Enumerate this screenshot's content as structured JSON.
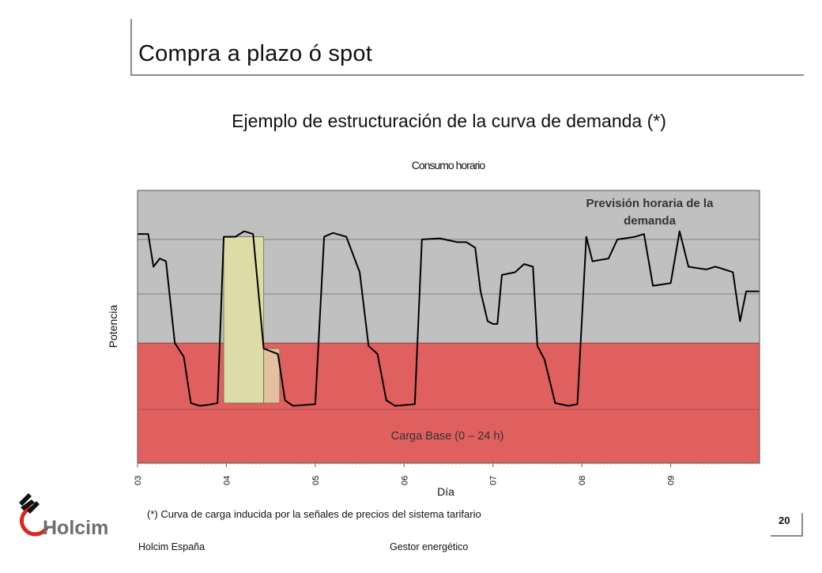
{
  "slide": {
    "title": "Compra a plazo ó spot",
    "subtitle": "Ejemplo de estructuración de la curva de demanda (*)",
    "footnote": "(*) Curva de carga inducida por la señales de precios del sistema tarifario",
    "page_number": "20"
  },
  "footer": {
    "left": "Holcim España",
    "right": "Gestor energético"
  },
  "logo": {
    "text": "Holcim"
  },
  "colors": {
    "plot_bg": "#c0c0c0",
    "base_load": "#e06060",
    "block_yellow": "#dedca6",
    "block_peach": "#e2c0a0",
    "curve": "#000000",
    "logo_red": "#d8281e",
    "logo_gray": "#6e6e6e"
  },
  "chart_data": {
    "type": "line",
    "title": "Consumo horario",
    "xlabel": "Día",
    "ylabel": "Potencia",
    "x_tick_labels": [
      "03",
      "04",
      "05",
      "06",
      "07",
      "08",
      "09"
    ],
    "x_range": [
      0,
      7
    ],
    "y_range": [
      0,
      5
    ],
    "grid": "horizontal",
    "annotations": {
      "forecast": [
        "Previsión horaria de la",
        "demanda"
      ],
      "base_load": "Carga Base (0 – 24 h)"
    },
    "base_load_top": 1.1,
    "blocks": [
      {
        "x": [
          0.97,
          1.42
        ],
        "top": 3.05,
        "fill": "block_yellow"
      },
      {
        "x": [
          1.42,
          1.6
        ],
        "top": 1.0,
        "fill": "block_peach"
      }
    ],
    "series": [
      {
        "points": [
          [
            0.0,
            3.1
          ],
          [
            0.12,
            3.1
          ],
          [
            0.18,
            2.5
          ],
          [
            0.25,
            2.65
          ],
          [
            0.32,
            2.6
          ],
          [
            0.42,
            1.1
          ],
          [
            0.52,
            0.85
          ],
          [
            0.6,
            0.0
          ],
          [
            0.7,
            -0.05
          ],
          [
            0.8,
            -0.03
          ],
          [
            0.9,
            0.0
          ],
          [
            0.97,
            3.05
          ],
          [
            1.1,
            3.05
          ],
          [
            1.2,
            3.15
          ],
          [
            1.3,
            3.1
          ],
          [
            1.42,
            1.0
          ],
          [
            1.58,
            0.9
          ],
          [
            1.66,
            0.05
          ],
          [
            1.75,
            -0.05
          ],
          [
            2.0,
            -0.02
          ],
          [
            2.1,
            3.05
          ],
          [
            2.2,
            3.12
          ],
          [
            2.35,
            3.05
          ],
          [
            2.5,
            2.4
          ],
          [
            2.6,
            1.05
          ],
          [
            2.7,
            0.9
          ],
          [
            2.8,
            0.05
          ],
          [
            2.9,
            -0.05
          ],
          [
            3.05,
            -0.03
          ],
          [
            3.12,
            -0.02
          ],
          [
            3.2,
            3.0
          ],
          [
            3.4,
            3.02
          ],
          [
            3.6,
            2.95
          ],
          [
            3.7,
            2.95
          ],
          [
            3.8,
            2.85
          ],
          [
            3.86,
            2.05
          ],
          [
            3.94,
            1.5
          ],
          [
            4.0,
            1.45
          ],
          [
            4.05,
            1.45
          ],
          [
            4.1,
            2.35
          ],
          [
            4.25,
            2.4
          ],
          [
            4.35,
            2.55
          ],
          [
            4.45,
            2.5
          ],
          [
            4.5,
            1.05
          ],
          [
            4.58,
            0.8
          ],
          [
            4.7,
            0.0
          ],
          [
            4.85,
            -0.05
          ],
          [
            4.95,
            -0.02
          ],
          [
            5.05,
            3.05
          ],
          [
            5.12,
            2.6
          ],
          [
            5.3,
            2.65
          ],
          [
            5.4,
            3.0
          ],
          [
            5.6,
            3.05
          ],
          [
            5.7,
            3.1
          ],
          [
            5.8,
            2.15
          ],
          [
            6.0,
            2.2
          ],
          [
            6.1,
            3.15
          ],
          [
            6.2,
            2.5
          ],
          [
            6.4,
            2.45
          ],
          [
            6.5,
            2.5
          ],
          [
            6.55,
            2.48
          ],
          [
            6.7,
            2.4
          ],
          [
            6.78,
            1.5
          ],
          [
            6.85,
            2.05
          ],
          [
            7.0,
            2.05
          ]
        ]
      }
    ]
  }
}
